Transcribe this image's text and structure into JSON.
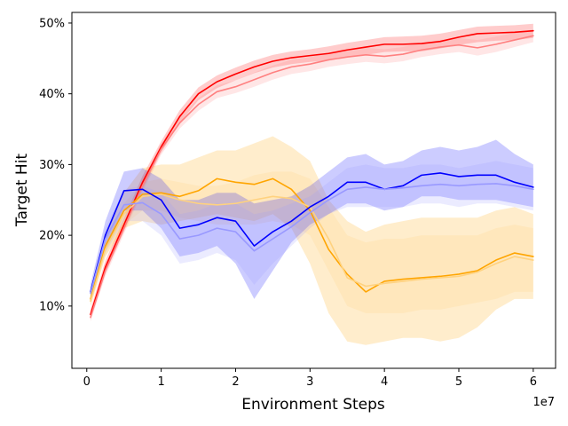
{
  "chart_data": {
    "type": "line",
    "title": "",
    "xlabel": "Environment Steps",
    "ylabel": "Target Hit",
    "x_offset_text": "1e7",
    "xlim": [
      -0.2,
      6.3
    ],
    "ylim": [
      1.2,
      51.5
    ],
    "x_ticks": [
      0,
      1,
      2,
      3,
      4,
      5,
      6
    ],
    "x_tick_labels": [
      "0",
      "1",
      "2",
      "3",
      "4",
      "5",
      "6"
    ],
    "y_ticks": [
      10,
      20,
      30,
      40,
      50
    ],
    "y_tick_labels": [
      "10%",
      "20%",
      "30%",
      "40%",
      "50%"
    ],
    "grid": false,
    "legend": "none",
    "x": [
      0.05,
      0.25,
      0.5,
      0.75,
      1.0,
      1.25,
      1.5,
      1.75,
      2.0,
      2.25,
      2.5,
      2.75,
      3.0,
      3.25,
      3.5,
      3.75,
      4.0,
      4.25,
      4.5,
      4.75,
      5.0,
      5.25,
      5.5,
      5.75,
      6.0
    ],
    "series": [
      {
        "name": "red",
        "color": "#ff0000",
        "values": [
          8.8,
          15.5,
          21.5,
          27.5,
          32.5,
          36.8,
          40.0,
          41.7,
          42.8,
          43.8,
          44.6,
          45.1,
          45.4,
          45.7,
          46.2,
          46.6,
          47.0,
          47.0,
          47.1,
          47.4,
          48.0,
          48.5,
          48.6,
          48.7,
          48.9
        ],
        "lower": [
          8.1,
          14.6,
          20.6,
          26.6,
          31.7,
          35.9,
          39.1,
          40.8,
          41.9,
          42.9,
          43.7,
          44.2,
          44.5,
          44.7,
          45.2,
          45.5,
          45.9,
          46.0,
          46.0,
          46.4,
          46.9,
          47.3,
          47.5,
          47.6,
          47.9
        ],
        "upper": [
          9.5,
          16.4,
          22.4,
          28.4,
          33.3,
          37.7,
          40.9,
          42.6,
          43.7,
          44.7,
          45.5,
          46.0,
          46.3,
          46.7,
          47.2,
          47.6,
          48.0,
          48.1,
          48.2,
          48.5,
          49.0,
          49.5,
          49.6,
          49.7,
          49.9
        ]
      },
      {
        "name": "light-red",
        "color": "#ff8080",
        "values": [
          8.4,
          15.0,
          21.0,
          27.0,
          32.2,
          35.9,
          38.5,
          40.3,
          41.0,
          42.0,
          43.0,
          43.8,
          44.2,
          44.8,
          45.2,
          45.5,
          45.3,
          45.6,
          46.2,
          46.6,
          46.9,
          46.5,
          47.0,
          47.6,
          48.2
        ],
        "lower": [
          7.8,
          14.2,
          20.2,
          26.2,
          31.4,
          35.1,
          37.6,
          39.4,
          40.1,
          41.0,
          42.0,
          42.8,
          43.2,
          43.8,
          44.2,
          44.5,
          44.3,
          44.6,
          45.2,
          45.6,
          45.9,
          45.4,
          45.9,
          46.6,
          47.3
        ],
        "upper": [
          9.0,
          15.8,
          21.8,
          27.8,
          33.0,
          36.7,
          39.4,
          41.2,
          41.9,
          43.0,
          44.0,
          44.8,
          45.2,
          45.8,
          46.2,
          46.5,
          46.3,
          46.6,
          47.2,
          47.6,
          47.9,
          47.6,
          48.1,
          48.6,
          49.1
        ]
      },
      {
        "name": "orange",
        "color": "#ffa500",
        "values": [
          11.0,
          18.5,
          23.5,
          25.8,
          26.0,
          25.5,
          26.3,
          28.0,
          27.5,
          27.2,
          28.0,
          26.5,
          23.5,
          18.0,
          14.5,
          12.0,
          13.5,
          13.8,
          14.0,
          14.2,
          14.5,
          15.0,
          16.5,
          17.5,
          17.0
        ],
        "lower": [
          10.0,
          17.0,
          21.0,
          22.0,
          21.5,
          22.0,
          22.5,
          23.0,
          22.5,
          22.0,
          23.0,
          21.0,
          16.0,
          9.0,
          5.0,
          4.5,
          5.0,
          5.5,
          5.5,
          5.0,
          5.5,
          7.0,
          9.5,
          11.0,
          11.0
        ],
        "upper": [
          12.0,
          20.0,
          26.0,
          29.5,
          30.0,
          30.0,
          31.0,
          32.0,
          32.0,
          33.0,
          34.0,
          32.5,
          30.5,
          25.0,
          22.0,
          20.5,
          21.5,
          22.0,
          22.5,
          22.5,
          22.5,
          22.5,
          23.5,
          24.0,
          23.0
        ]
      },
      {
        "name": "light-orange",
        "color": "#ffd27f",
        "values": [
          10.7,
          18.0,
          23.0,
          25.5,
          25.8,
          25.0,
          24.5,
          24.3,
          24.5,
          25.0,
          25.5,
          25.2,
          24.0,
          19.5,
          14.0,
          12.8,
          13.2,
          13.5,
          13.8,
          14.0,
          14.2,
          14.8,
          16.0,
          17.0,
          16.5
        ],
        "lower": [
          10.0,
          17.0,
          21.5,
          23.5,
          23.5,
          22.5,
          22.0,
          21.5,
          21.5,
          21.5,
          22.0,
          21.5,
          20.0,
          15.0,
          10.0,
          9.0,
          9.0,
          9.0,
          9.5,
          9.5,
          10.0,
          10.5,
          11.0,
          12.0,
          12.0
        ],
        "upper": [
          11.4,
          19.0,
          24.5,
          27.5,
          28.0,
          27.5,
          27.0,
          27.0,
          27.5,
          28.5,
          29.0,
          29.0,
          28.0,
          24.0,
          20.0,
          19.0,
          19.5,
          19.5,
          20.0,
          20.0,
          20.0,
          20.0,
          21.0,
          21.5,
          21.0
        ]
      },
      {
        "name": "blue",
        "color": "#0000ff",
        "values": [
          12.0,
          20.0,
          26.3,
          26.5,
          25.0,
          21.0,
          21.5,
          22.5,
          22.0,
          18.5,
          20.5,
          22.0,
          24.0,
          25.5,
          27.5,
          27.5,
          26.5,
          27.0,
          28.5,
          28.8,
          28.3,
          28.5,
          28.5,
          27.5,
          26.8
        ],
        "lower": [
          11.0,
          18.0,
          23.5,
          23.5,
          21.0,
          17.0,
          17.5,
          18.5,
          16.0,
          11.0,
          15.0,
          19.0,
          21.5,
          23.0,
          24.5,
          24.5,
          23.5,
          24.0,
          25.5,
          25.5,
          25.0,
          25.0,
          25.0,
          24.5,
          24.0
        ],
        "upper": [
          13.0,
          22.0,
          29.0,
          29.5,
          28.0,
          25.0,
          25.0,
          26.0,
          26.0,
          24.5,
          25.0,
          25.5,
          27.0,
          29.0,
          31.0,
          31.5,
          30.0,
          30.5,
          32.0,
          32.5,
          32.0,
          32.5,
          33.5,
          31.5,
          30.0
        ]
      },
      {
        "name": "light-blue",
        "color": "#9999ff",
        "values": [
          11.8,
          19.5,
          24.3,
          24.6,
          23.0,
          19.5,
          20.0,
          21.0,
          20.5,
          17.8,
          19.5,
          21.2,
          23.2,
          25.0,
          26.5,
          26.8,
          26.5,
          26.7,
          27.0,
          27.2,
          27.0,
          27.2,
          27.3,
          27.0,
          26.5
        ],
        "lower": [
          11.0,
          17.5,
          22.0,
          22.0,
          20.0,
          16.0,
          16.5,
          17.5,
          16.5,
          13.0,
          16.0,
          18.5,
          21.0,
          23.0,
          24.0,
          24.0,
          24.0,
          24.0,
          24.5,
          24.5,
          24.0,
          24.5,
          24.5,
          24.0,
          23.5
        ],
        "upper": [
          12.5,
          21.0,
          26.5,
          27.0,
          26.0,
          23.0,
          23.5,
          24.5,
          24.5,
          23.0,
          23.5,
          24.5,
          25.5,
          27.5,
          29.5,
          30.0,
          29.5,
          29.5,
          30.0,
          30.0,
          29.5,
          30.0,
          30.5,
          30.0,
          29.5
        ]
      }
    ]
  }
}
